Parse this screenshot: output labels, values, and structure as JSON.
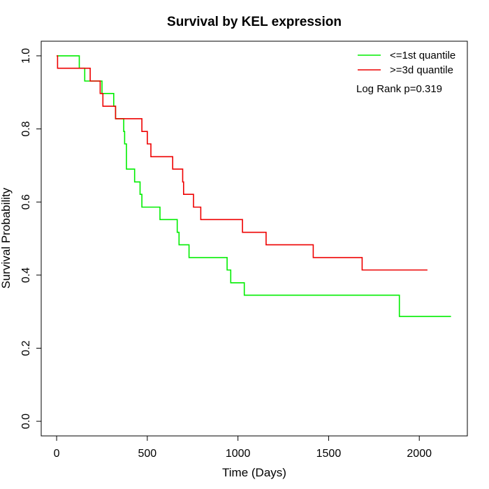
{
  "chart_data": {
    "type": "line",
    "step": true,
    "title": "Survival by KEL expression",
    "xlabel": "Time (Days)",
    "ylabel": "Survival Probability",
    "xlim": [
      -85,
      2265
    ],
    "ylim": [
      -0.04,
      1.04
    ],
    "xticks": [
      0,
      500,
      1000,
      1500,
      2000
    ],
    "yticks": [
      0.0,
      0.2,
      0.4,
      0.6,
      0.8,
      1.0
    ],
    "legend_position": "top-right",
    "annotation": "Log Rank p=0.319",
    "series": [
      {
        "name": "<=1st quantile",
        "color": "#00ee00",
        "points": [
          [
            0,
            1.0
          ],
          [
            125,
            0.966
          ],
          [
            155,
            0.931
          ],
          [
            250,
            0.897
          ],
          [
            315,
            0.862
          ],
          [
            325,
            0.828
          ],
          [
            370,
            0.793
          ],
          [
            375,
            0.759
          ],
          [
            385,
            0.69
          ],
          [
            430,
            0.655
          ],
          [
            460,
            0.621
          ],
          [
            470,
            0.586
          ],
          [
            570,
            0.552
          ],
          [
            665,
            0.517
          ],
          [
            675,
            0.483
          ],
          [
            730,
            0.448
          ],
          [
            940,
            0.414
          ],
          [
            960,
            0.379
          ],
          [
            1035,
            0.345
          ],
          [
            1890,
            0.287
          ],
          [
            2175,
            0.287
          ]
        ]
      },
      {
        "name": ">=3d quantile",
        "color": "#ee0000",
        "points": [
          [
            0,
            1.0
          ],
          [
            5,
            0.966
          ],
          [
            185,
            0.931
          ],
          [
            240,
            0.897
          ],
          [
            255,
            0.862
          ],
          [
            325,
            0.828
          ],
          [
            470,
            0.793
          ],
          [
            500,
            0.759
          ],
          [
            520,
            0.724
          ],
          [
            640,
            0.69
          ],
          [
            695,
            0.655
          ],
          [
            700,
            0.621
          ],
          [
            755,
            0.586
          ],
          [
            795,
            0.552
          ],
          [
            1025,
            0.517
          ],
          [
            1155,
            0.483
          ],
          [
            1415,
            0.448
          ],
          [
            1685,
            0.414
          ],
          [
            2045,
            0.414
          ]
        ]
      }
    ]
  }
}
